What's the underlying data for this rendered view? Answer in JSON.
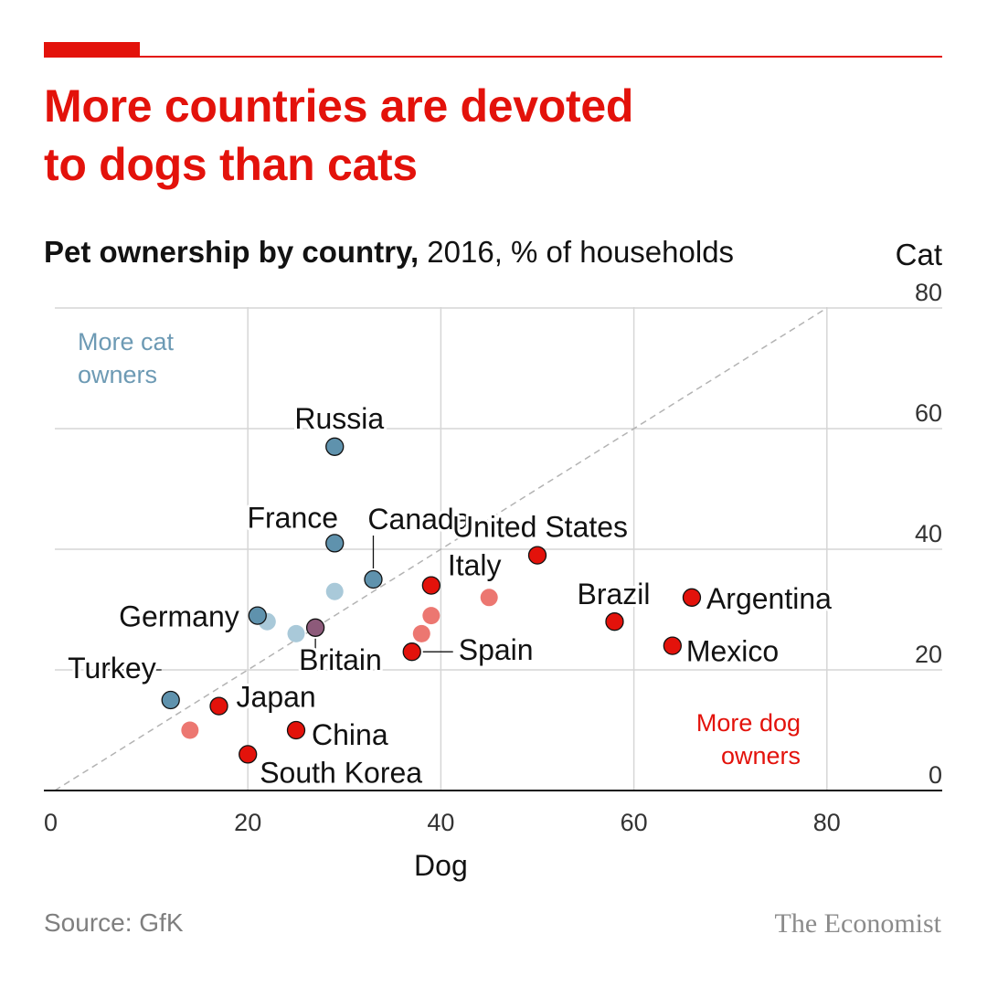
{
  "headline": "More countries are devoted\nto dogs than cats",
  "subtitle": {
    "bold": "Pet ownership by country,",
    "rest": " 2016, % of households"
  },
  "source": "Source: GfK",
  "brand": "The Economist",
  "colors": {
    "accent": "#e3120b",
    "cat_dark": "#5f92ad",
    "cat_light": "#a9c9d9",
    "dog_dark": "#e3120b",
    "dog_light": "#ec7771",
    "mixed": "#8d5a7a",
    "cat_annotation": "#6d9ab4"
  },
  "chart_data": {
    "type": "scatter",
    "xlabel": "Dog",
    "ylabel": "Cat",
    "xlim": [
      0,
      92
    ],
    "ylim": [
      0,
      80
    ],
    "x_ticks": [
      "0",
      "20",
      "40",
      "60",
      "80"
    ],
    "y_ticks": [
      "0",
      "20",
      "40",
      "60",
      "80"
    ],
    "grid": true,
    "diagonal_line": true,
    "annotations": {
      "cat": "More cat\nowners",
      "dog": "More dog\nowners"
    },
    "points": [
      {
        "label": "Russia",
        "x": 29,
        "y": 57,
        "group": "cat_dark"
      },
      {
        "label": "France",
        "x": 29,
        "y": 41,
        "group": "cat_dark"
      },
      {
        "label": "Canada",
        "x": 33,
        "y": 35,
        "group": "cat_dark"
      },
      {
        "label": "Germany",
        "x": 21,
        "y": 29,
        "group": "cat_dark"
      },
      {
        "label": "Turkey",
        "x": 12,
        "y": 15,
        "group": "cat_dark"
      },
      {
        "label": "",
        "x": 29,
        "y": 33,
        "group": "cat_light"
      },
      {
        "label": "",
        "x": 22,
        "y": 28,
        "group": "cat_light"
      },
      {
        "label": "",
        "x": 25,
        "y": 26,
        "group": "cat_light"
      },
      {
        "label": "Britain",
        "x": 27,
        "y": 27,
        "group": "mixed"
      },
      {
        "label": "Italy",
        "x": 39,
        "y": 34,
        "group": "dog_dark"
      },
      {
        "label": "United States",
        "x": 50,
        "y": 39,
        "group": "dog_dark"
      },
      {
        "label": "Brazil",
        "x": 58,
        "y": 28,
        "group": "dog_dark"
      },
      {
        "label": "Argentina",
        "x": 66,
        "y": 32,
        "group": "dog_dark"
      },
      {
        "label": "Mexico",
        "x": 64,
        "y": 24,
        "group": "dog_dark"
      },
      {
        "label": "Spain",
        "x": 37,
        "y": 23,
        "group": "dog_dark"
      },
      {
        "label": "Japan",
        "x": 17,
        "y": 14,
        "group": "dog_dark"
      },
      {
        "label": "China",
        "x": 25,
        "y": 10,
        "group": "dog_dark"
      },
      {
        "label": "South Korea",
        "x": 20,
        "y": 6,
        "group": "dog_dark"
      },
      {
        "label": "",
        "x": 45,
        "y": 32,
        "group": "dog_light"
      },
      {
        "label": "",
        "x": 39,
        "y": 29,
        "group": "dog_light"
      },
      {
        "label": "",
        "x": 38,
        "y": 26,
        "group": "dog_light"
      },
      {
        "label": "",
        "x": 14,
        "y": 10,
        "group": "dog_light"
      }
    ]
  }
}
